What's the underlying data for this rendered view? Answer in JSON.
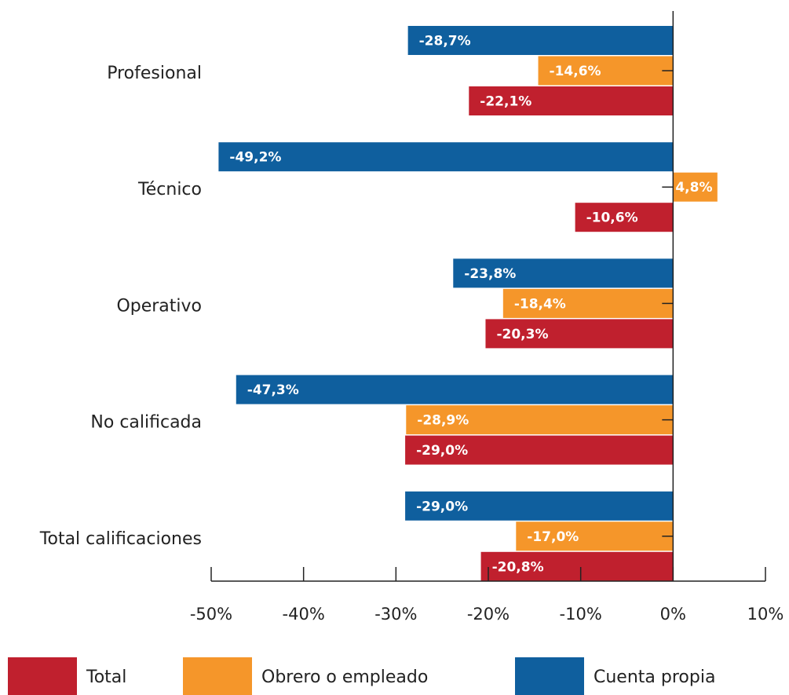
{
  "chart_data": {
    "type": "bar",
    "orientation": "horizontal",
    "categories": [
      "Profesional",
      "Técnico",
      "Operativo",
      "No calificada",
      "Total calificaciones"
    ],
    "series": [
      {
        "name": "Total",
        "color": "#c0202e",
        "values": [
          -22.1,
          -10.6,
          -20.3,
          -29.0,
          -20.8
        ],
        "value_labels": [
          "-22,1%",
          "-10,6%",
          "-20,3%",
          "-29,0%",
          "-20,8%"
        ]
      },
      {
        "name": "Obrero o empleado",
        "color": "#f5962a",
        "values": [
          -14.6,
          4.8,
          -18.4,
          -28.9,
          -17.0
        ],
        "value_labels": [
          "-14,6%",
          "4,8%",
          "-18,4%",
          "-28,9%",
          "-17,0%"
        ]
      },
      {
        "name": "Cuenta propia",
        "color": "#0f5f9e",
        "values": [
          -28.7,
          -49.2,
          -23.8,
          -47.3,
          -29.0
        ],
        "value_labels": [
          "-28,7%",
          "-49,2%",
          "-23,8%",
          "-47,3%",
          "-29,0%"
        ]
      }
    ],
    "xlim": [
      -50,
      10
    ],
    "xticks": [
      {
        "value": -50,
        "label": "-50%"
      },
      {
        "value": -40,
        "label": "-40%"
      },
      {
        "value": -30,
        "label": "-30%"
      },
      {
        "value": -20,
        "label": "-20%"
      },
      {
        "value": -10,
        "label": "-10%"
      },
      {
        "value": 0,
        "label": "0%"
      },
      {
        "value": 10,
        "label": "10%"
      }
    ],
    "legend": "bottom"
  }
}
